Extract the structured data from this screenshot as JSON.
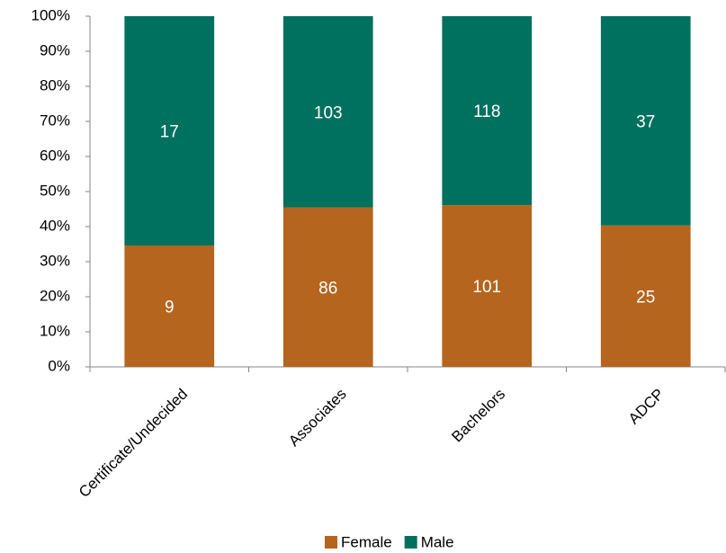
{
  "chart_data": {
    "type": "bar",
    "stacking": "percent",
    "categories": [
      "Certificate/Undecided",
      "Associates",
      "Bachelors",
      "ADCP"
    ],
    "series": [
      {
        "name": "Female",
        "color": "#b5651d",
        "values": [
          9,
          86,
          101,
          25
        ]
      },
      {
        "name": "Male",
        "color": "#00705f",
        "values": [
          17,
          103,
          118,
          37
        ]
      }
    ],
    "ylim": [
      0,
      100
    ],
    "yticks": [
      {
        "value": 0,
        "label": "0%"
      },
      {
        "value": 10,
        "label": "10%"
      },
      {
        "value": 20,
        "label": "20%"
      },
      {
        "value": 30,
        "label": "30%"
      },
      {
        "value": 40,
        "label": "40%"
      },
      {
        "value": 50,
        "label": "50%"
      },
      {
        "value": 60,
        "label": "60%"
      },
      {
        "value": 70,
        "label": "70%"
      },
      {
        "value": 80,
        "label": "80%"
      },
      {
        "value": 90,
        "label": "90%"
      },
      {
        "value": 100,
        "label": "100%"
      }
    ],
    "grid": false,
    "legend": "bottom"
  }
}
